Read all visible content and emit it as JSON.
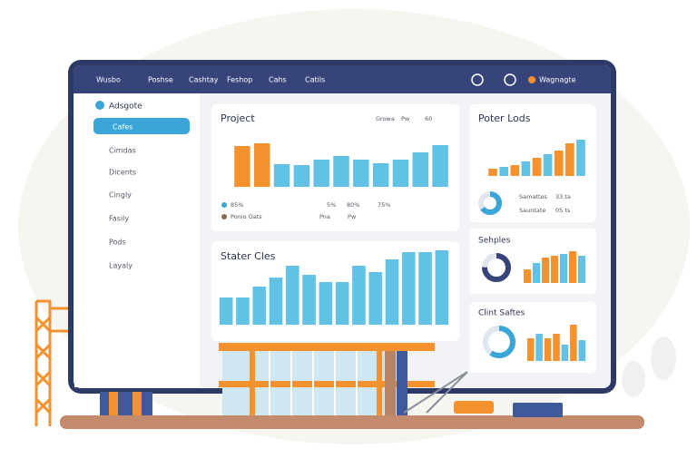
{
  "nav": {
    "logo": "Wusbo",
    "items": [
      "Poshse",
      "Cashtay",
      "Feshop",
      "Cahs",
      "Catils"
    ],
    "user": "Wagnagte"
  },
  "sidebar": {
    "brand": "Adsgote",
    "items": [
      "Cafes",
      "Cimdas",
      "Dicents",
      "Cingly",
      "Fasily",
      "Pods",
      "Layaly"
    ]
  },
  "cards": [
    {
      "title": "Project",
      "controls": [
        "Growa",
        "Pw",
        "60"
      ],
      "legend": [
        "85%",
        "5%",
        "80%",
        "75%",
        "Ponio Oats",
        "Pna",
        "Pw"
      ],
      "values": [
        45,
        48,
        25,
        24,
        30,
        34,
        30,
        26,
        30,
        38,
        46
      ],
      "colors": [
        "#f6922e",
        "#f6922e",
        "#62c2e6",
        "#62c2e6",
        "#62c2e6",
        "#62c2e6",
        "#62c2e6",
        "#62c2e6",
        "#62c2e6",
        "#62c2e6",
        "#62c2e6"
      ]
    },
    {
      "title": "Poter Lods",
      "donut": 65,
      "legend": [
        "Samattes",
        "33 ta",
        "Sauntate",
        "05 ts"
      ],
      "values": [
        8,
        10,
        12,
        16,
        20,
        24,
        28,
        36,
        40
      ],
      "colors": [
        "#f6922e",
        "#62c2e6",
        "#f6922e",
        "#62c2e6",
        "#f6922e",
        "#62c2e6",
        "#f6922e",
        "#f6922e",
        "#62c2e6"
      ]
    },
    {
      "title": "Stater Cles",
      "values": [
        30,
        30,
        42,
        52,
        65,
        55,
        47,
        47,
        65,
        58,
        72,
        80,
        80,
        82
      ],
      "colors": [
        "#62c2e6",
        "#62c2e6",
        "#62c2e6",
        "#62c2e6",
        "#62c2e6",
        "#62c2e6",
        "#62c2e6",
        "#62c2e6",
        "#62c2e6",
        "#62c2e6",
        "#62c2e6",
        "#62c2e6",
        "#62c2e6",
        "#62c2e6"
      ]
    },
    {
      "title": "Sehples",
      "donut": 75,
      "values": [
        15,
        22,
        28,
        30,
        32,
        35,
        30
      ],
      "colors": [
        "#f6922e",
        "#62c2e6",
        "#f6922e",
        "#f6922e",
        "#62c2e6",
        "#f6922e",
        "#62c2e6"
      ]
    },
    {
      "title": "Clint Saftes",
      "donut": 60,
      "values": [
        25,
        30,
        25,
        30,
        18,
        40,
        23
      ],
      "colors": [
        "#f6922e",
        "#62c2e6",
        "#f6922e",
        "#f6922e",
        "#62c2e6",
        "#f6922e",
        "#62c2e6"
      ]
    }
  ]
}
